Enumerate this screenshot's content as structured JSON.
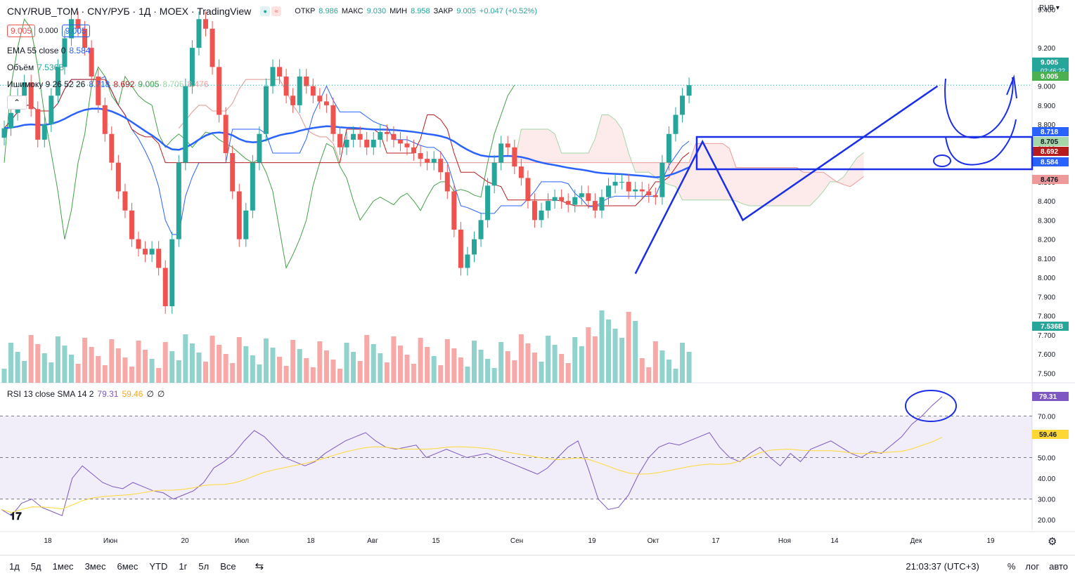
{
  "header": {
    "title": "CNY/RUB_TOM · CNY/РУБ · 1Д · MOEX · TradingView",
    "open_label": "ОТКР",
    "open": "8.986",
    "high_label": "МАКС",
    "high": "9.030",
    "low_label": "МИН",
    "low": "8.958",
    "close_label": "ЗАКР",
    "close": "9.005",
    "change": "+0.047 (+0.52%)",
    "bid": "9.005",
    "spread": "0.000",
    "ask": "9.005"
  },
  "indicators": {
    "ema_label": "EMA 55 close 0",
    "ema_value": "8.584",
    "volume_label": "Объём",
    "volume_value": "7.536B",
    "ichimoku_label": "Ишимоку 9 26 52 26",
    "ichimoku_values": [
      "8.718",
      "8.692",
      "9.005",
      "8.705",
      "8.476"
    ],
    "rsi_label": "RSI 13 close SMA 14 2",
    "rsi_value": "79.31",
    "rsi_sma": "59.46",
    "rsi_extra1": "∅",
    "rsi_extra2": "∅"
  },
  "price_axis": {
    "currency": "RUB",
    "ticks": [
      "9.400",
      "9.200",
      "9.000",
      "8.900",
      "8.800",
      "8.700",
      "8.600",
      "8.500",
      "8.400",
      "8.300",
      "8.200",
      "8.100",
      "8.000",
      "7.900",
      "7.800",
      "7.700",
      "7.600",
      "7.500"
    ],
    "labels": [
      {
        "text": "9.005",
        "sub": "02:46:22",
        "color": "#26a69a"
      },
      {
        "text": "9.005",
        "color": "#4caf50"
      },
      {
        "text": "8.718",
        "color": "#2962ff"
      },
      {
        "text": "8.705",
        "color": "#a5d6a7"
      },
      {
        "text": "8.692",
        "color": "#b71c1c"
      },
      {
        "text": "8.584",
        "color": "#2962ff"
      },
      {
        "text": "8.476",
        "color": "#ef9a9a"
      },
      {
        "text": "7.536B",
        "color": "#26a69a"
      }
    ]
  },
  "rsi_axis": {
    "ticks": [
      "70.00",
      "50.00",
      "40.00",
      "30.00",
      "20.00"
    ],
    "labels": [
      {
        "text": "79.31",
        "color": "#7e57c2"
      },
      {
        "text": "59.46",
        "color": "#fdd835"
      }
    ]
  },
  "time_axis": [
    "18",
    "Июн",
    "20",
    "Июл",
    "18",
    "Авг",
    "15",
    "Сен",
    "19",
    "Окт",
    "17",
    "Ноя",
    "14",
    "Дек",
    "19"
  ],
  "toolbar": {
    "timeframes": [
      "1д",
      "5д",
      "1мес",
      "3мес",
      "6мес",
      "YTD",
      "1г",
      "5л",
      "Все"
    ],
    "clock": "21:03:37 (UTC+3)",
    "percent": "%",
    "log": "лог",
    "auto": "авто"
  },
  "colors": {
    "up": "#26a69a",
    "down": "#ef5350",
    "ema": "#2962ff",
    "rsi": "#7e57c2",
    "rsi_sma": "#fdd835",
    "drawing": "#1a2ee8"
  },
  "chart_data": {
    "type": "candlestick",
    "title": "CNY/RUB_TOM · 1Д · MOEX",
    "ylim": [
      7.45,
      9.45
    ],
    "candles_close": [
      8.78,
      8.86,
      8.95,
      9.02,
      8.88,
      8.72,
      8.8,
      8.95,
      9.1,
      9.25,
      9.35,
      9.3,
      9.2,
      9.05,
      8.9,
      8.75,
      8.6,
      8.45,
      8.35,
      8.2,
      8.15,
      8.12,
      8.15,
      8.05,
      7.85,
      8.2,
      8.6,
      9.0,
      9.2,
      9.35,
      9.3,
      9.1,
      8.85,
      8.65,
      8.45,
      8.2,
      8.35,
      8.6,
      8.75,
      9.0,
      9.1,
      9.05,
      8.95,
      8.9,
      9.05,
      9.0,
      8.95,
      8.92,
      8.9,
      8.75,
      8.68,
      8.72,
      8.75,
      8.72,
      8.68,
      8.72,
      8.76,
      8.75,
      8.72,
      8.7,
      8.68,
      8.65,
      8.62,
      8.6,
      8.62,
      8.55,
      8.45,
      8.25,
      8.05,
      8.12,
      8.2,
      8.3,
      8.48,
      8.6,
      8.7,
      8.68,
      8.58,
      8.52,
      8.4,
      8.3,
      8.35,
      8.4,
      8.42,
      8.4,
      8.38,
      8.42,
      8.44,
      8.4,
      8.35,
      8.42,
      8.48,
      8.5,
      8.5,
      8.45,
      8.46,
      8.45,
      8.43,
      8.42,
      8.6,
      8.75,
      8.85,
      8.95,
      9.005
    ],
    "rsi": [
      25,
      22,
      28,
      30,
      26,
      24,
      22,
      40,
      46,
      42,
      38,
      36,
      35,
      38,
      36,
      34,
      33,
      30,
      32,
      34,
      38,
      45,
      48,
      52,
      58,
      63,
      60,
      55,
      50,
      48,
      46,
      48,
      52,
      55,
      58,
      60,
      62,
      58,
      55,
      54,
      55,
      56,
      50,
      52,
      54,
      52,
      50,
      51,
      52,
      50,
      48,
      46,
      44,
      42,
      45,
      50,
      55,
      58,
      45,
      30,
      25,
      26,
      32,
      42,
      50,
      55,
      57,
      56,
      58,
      60,
      62,
      55,
      50,
      48,
      52,
      55,
      50,
      46,
      52,
      48,
      54,
      56,
      58,
      55,
      52,
      50,
      53,
      52,
      56,
      60,
      66,
      70,
      75,
      79.31
    ],
    "rsi_ylim": [
      15,
      85
    ]
  }
}
